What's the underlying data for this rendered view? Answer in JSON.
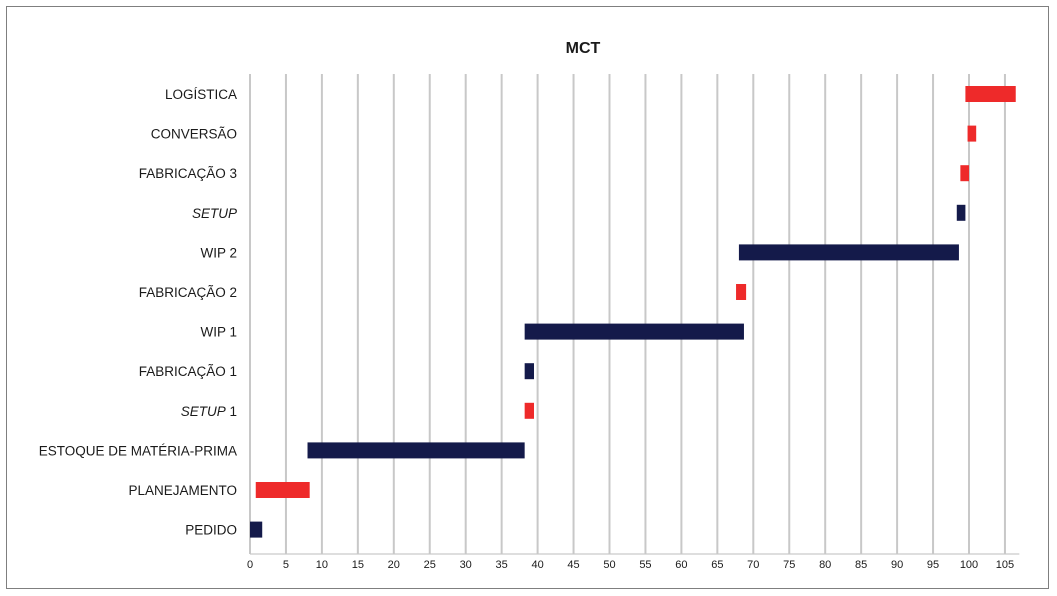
{
  "chart_data": {
    "type": "bar",
    "orientation": "horizontal-gantt",
    "title": "MCT",
    "xlim": [
      0,
      107
    ],
    "xticks": [
      0,
      5,
      10,
      15,
      20,
      25,
      30,
      35,
      40,
      45,
      50,
      55,
      60,
      65,
      70,
      75,
      80,
      85,
      90,
      95,
      100,
      105
    ],
    "grid": true,
    "colors": {
      "navy": "#141a4a",
      "red": "#ee2a2a"
    },
    "tasks": [
      {
        "label": "LOGÍSTICA",
        "italic_part": "",
        "start": 99.5,
        "end": 106.5,
        "color": "red"
      },
      {
        "label": "CONVERSÃO",
        "italic_part": "",
        "start": 99.8,
        "end": 101.0,
        "color": "red"
      },
      {
        "label": "FABRICAÇÃO 3",
        "italic_part": "",
        "start": 98.8,
        "end": 100.0,
        "color": "red"
      },
      {
        "label": "",
        "italic_part": "SETUP",
        "start": 98.3,
        "end": 99.5,
        "color": "navy"
      },
      {
        "label": "WIP 2",
        "italic_part": "",
        "start": 68.0,
        "end": 98.6,
        "color": "navy"
      },
      {
        "label": "FABRICAÇÃO 2",
        "italic_part": "",
        "start": 67.6,
        "end": 69.0,
        "color": "red"
      },
      {
        "label": "WIP 1",
        "italic_part": "",
        "start": 38.2,
        "end": 68.7,
        "color": "navy"
      },
      {
        "label": "FABRICAÇÃO 1",
        "italic_part": "",
        "start": 38.2,
        "end": 39.5,
        "color": "navy"
      },
      {
        "label": " 1",
        "italic_part": "SETUP",
        "start": 38.2,
        "end": 39.5,
        "color": "red"
      },
      {
        "label": "ESTOQUE DE MATÉRIA-PRIMA",
        "italic_part": "",
        "start": 8.0,
        "end": 38.2,
        "color": "navy"
      },
      {
        "label": "PLANEJAMENTO",
        "italic_part": "",
        "start": 0.8,
        "end": 8.3,
        "color": "red"
      },
      {
        "label": "PEDIDO",
        "italic_part": "",
        "start": 0.0,
        "end": 1.7,
        "color": "navy"
      }
    ]
  }
}
